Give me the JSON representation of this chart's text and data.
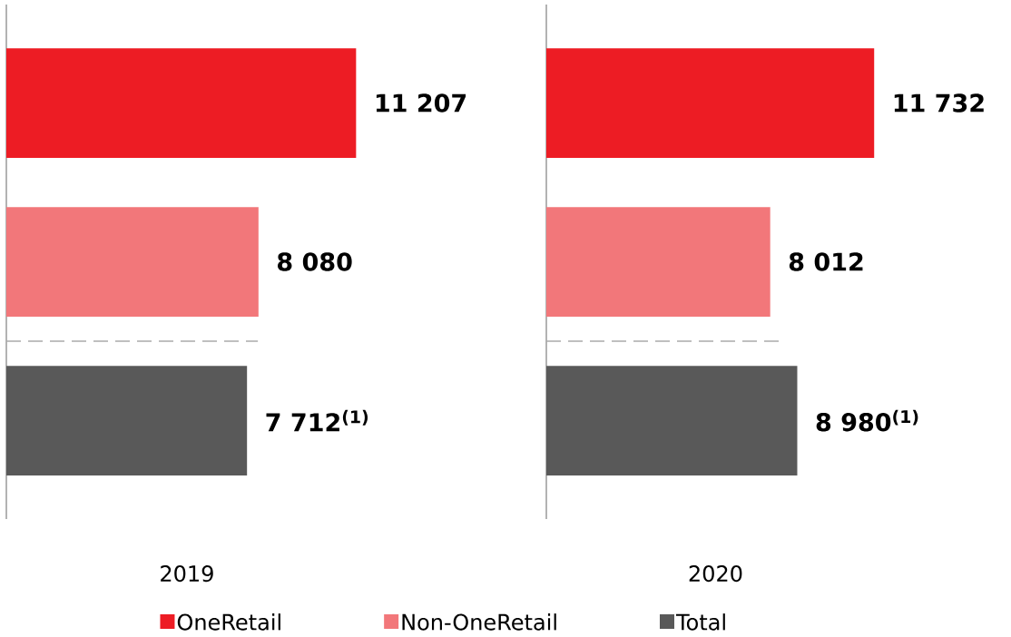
{
  "chart_data": [
    {
      "type": "bar",
      "orientation": "horizontal",
      "stacked": true,
      "xlabel": "2019",
      "categories": [
        null,
        null,
        null
      ],
      "legend": "bottom",
      "data_labels": true,
      "series": [
        {
          "name": "OneRetail",
          "color": "#ed1c24",
          "values": [
            11207,
            null,
            null
          ],
          "value_labels": [
            "11 207",
            null,
            null
          ]
        },
        {
          "name": "Non-OneRetail",
          "color": "#f2777a",
          "values": [
            null,
            8080,
            null
          ],
          "value_labels": [
            null,
            "8 080",
            null
          ]
        },
        {
          "name": "Total",
          "color": "#595959",
          "values": [
            null,
            null,
            7712
          ],
          "value_labels": [
            null,
            null,
            "7 712$^{(1)}$"
          ]
        }
      ]
    },
    {
      "type": "bar",
      "orientation": "horizontal",
      "stacked": true,
      "xlabel": "2020",
      "categories": [
        null,
        null,
        null
      ],
      "data_labels": true,
      "series": [
        {
          "color": "#ed1c24",
          "values": [
            11732,
            null,
            null
          ],
          "value_labels": [
            "11 732",
            null,
            null
          ]
        },
        {
          "color": "#f2777a",
          "values": [
            null,
            8012,
            null
          ],
          "value_labels": [
            null,
            "8 012",
            null
          ]
        },
        {
          "color": "#595959",
          "values": [
            null,
            null,
            8980
          ],
          "value_labels": [
            null,
            null,
            "8 980$^{(1)}$"
          ]
        }
      ]
    }
  ]
}
